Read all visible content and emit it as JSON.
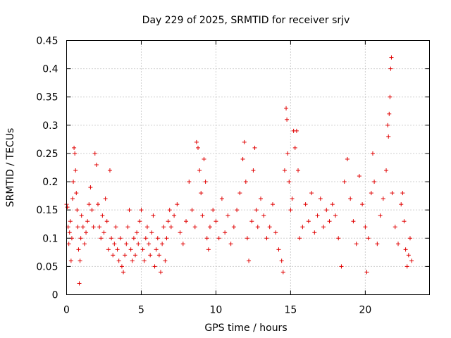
{
  "chart_data": {
    "type": "scatter",
    "title": "Day 229 of 2025, SRMTID for receiver srjv",
    "xlabel": "GPS time / hours",
    "ylabel": "SRMTID / TECUs",
    "xlim": [
      0,
      24.3
    ],
    "ylim": [
      0,
      0.45
    ],
    "xticks": [
      0,
      5,
      10,
      15,
      20
    ],
    "xtick_labels": [
      "0",
      "5",
      "10",
      "15",
      "20"
    ],
    "yticks": [
      0,
      0.05,
      0.1,
      0.15,
      0.2,
      0.25,
      0.3,
      0.35,
      0.4,
      0.45
    ],
    "ytick_labels": [
      "0",
      "0.05",
      "0.1",
      "0.15",
      "0.2",
      "0.25",
      "0.3",
      "0.35",
      "0.4",
      "0.45"
    ],
    "grid": true,
    "marker": "+",
    "color": "#e00000",
    "series": [
      {
        "name": "SRMTID",
        "points": [
          [
            0.0,
            0.16
          ],
          [
            0.05,
            0.155
          ],
          [
            0.1,
            0.12
          ],
          [
            0.15,
            0.09
          ],
          [
            0.2,
            0.11
          ],
          [
            0.25,
            0.13
          ],
          [
            0.3,
            0.06
          ],
          [
            0.35,
            0.1
          ],
          [
            0.4,
            0.17
          ],
          [
            0.45,
            0.2
          ],
          [
            0.5,
            0.26
          ],
          [
            0.55,
            0.25
          ],
          [
            0.6,
            0.22
          ],
          [
            0.65,
            0.18
          ],
          [
            0.7,
            0.15
          ],
          [
            0.75,
            0.12
          ],
          [
            0.8,
            0.08
          ],
          [
            0.85,
            0.02
          ],
          [
            0.9,
            0.06
          ],
          [
            0.95,
            0.1
          ],
          [
            1.0,
            0.14
          ],
          [
            1.1,
            0.12
          ],
          [
            1.2,
            0.09
          ],
          [
            1.3,
            0.11
          ],
          [
            1.4,
            0.13
          ],
          [
            1.5,
            0.16
          ],
          [
            1.6,
            0.19
          ],
          [
            1.7,
            0.15
          ],
          [
            1.8,
            0.12
          ],
          [
            1.9,
            0.25
          ],
          [
            2.0,
            0.23
          ],
          [
            2.1,
            0.16
          ],
          [
            2.2,
            0.12
          ],
          [
            2.3,
            0.1
          ],
          [
            2.4,
            0.14
          ],
          [
            2.5,
            0.11
          ],
          [
            2.6,
            0.17
          ],
          [
            2.7,
            0.13
          ],
          [
            2.8,
            0.08
          ],
          [
            2.9,
            0.22
          ],
          [
            3.0,
            0.1
          ],
          [
            3.1,
            0.07
          ],
          [
            3.2,
            0.09
          ],
          [
            3.3,
            0.12
          ],
          [
            3.4,
            0.08
          ],
          [
            3.5,
            0.06
          ],
          [
            3.6,
            0.1
          ],
          [
            3.7,
            0.05
          ],
          [
            3.8,
            0.04
          ],
          [
            3.9,
            0.07
          ],
          [
            4.0,
            0.09
          ],
          [
            4.1,
            0.12
          ],
          [
            4.2,
            0.15
          ],
          [
            4.3,
            0.08
          ],
          [
            4.4,
            0.06
          ],
          [
            4.5,
            0.1
          ],
          [
            4.6,
            0.07
          ],
          [
            4.7,
            0.11
          ],
          [
            4.8,
            0.09
          ],
          [
            4.9,
            0.13
          ],
          [
            5.0,
            0.15
          ],
          [
            5.1,
            0.08
          ],
          [
            5.2,
            0.06
          ],
          [
            5.3,
            0.1
          ],
          [
            5.4,
            0.12
          ],
          [
            5.5,
            0.09
          ],
          [
            5.6,
            0.07
          ],
          [
            5.7,
            0.11
          ],
          [
            5.8,
            0.14
          ],
          [
            5.9,
            0.05
          ],
          [
            6.0,
            0.08
          ],
          [
            6.1,
            0.1
          ],
          [
            6.2,
            0.07
          ],
          [
            6.3,
            0.04
          ],
          [
            6.4,
            0.09
          ],
          [
            6.5,
            0.12
          ],
          [
            6.6,
            0.06
          ],
          [
            6.7,
            0.1
          ],
          [
            6.8,
            0.13
          ],
          [
            6.9,
            0.15
          ],
          [
            7.0,
            0.12
          ],
          [
            7.2,
            0.14
          ],
          [
            7.4,
            0.16
          ],
          [
            7.6,
            0.11
          ],
          [
            7.8,
            0.09
          ],
          [
            8.0,
            0.13
          ],
          [
            8.2,
            0.2
          ],
          [
            8.4,
            0.15
          ],
          [
            8.6,
            0.12
          ],
          [
            8.7,
            0.27
          ],
          [
            8.8,
            0.26
          ],
          [
            8.9,
            0.22
          ],
          [
            9.0,
            0.18
          ],
          [
            9.1,
            0.14
          ],
          [
            9.2,
            0.24
          ],
          [
            9.3,
            0.2
          ],
          [
            9.4,
            0.1
          ],
          [
            9.5,
            0.08
          ],
          [
            9.6,
            0.12
          ],
          [
            9.8,
            0.15
          ],
          [
            10.0,
            0.13
          ],
          [
            10.2,
            0.1
          ],
          [
            10.4,
            0.17
          ],
          [
            10.6,
            0.11
          ],
          [
            10.8,
            0.14
          ],
          [
            11.0,
            0.09
          ],
          [
            11.2,
            0.12
          ],
          [
            11.4,
            0.15
          ],
          [
            11.6,
            0.18
          ],
          [
            11.8,
            0.24
          ],
          [
            11.9,
            0.27
          ],
          [
            12.0,
            0.2
          ],
          [
            12.1,
            0.1
          ],
          [
            12.2,
            0.06
          ],
          [
            12.4,
            0.13
          ],
          [
            12.5,
            0.22
          ],
          [
            12.6,
            0.26
          ],
          [
            12.7,
            0.15
          ],
          [
            12.8,
            0.12
          ],
          [
            13.0,
            0.17
          ],
          [
            13.2,
            0.14
          ],
          [
            13.4,
            0.1
          ],
          [
            13.6,
            0.12
          ],
          [
            13.8,
            0.16
          ],
          [
            14.0,
            0.11
          ],
          [
            14.2,
            0.08
          ],
          [
            14.4,
            0.06
          ],
          [
            14.5,
            0.04
          ],
          [
            14.6,
            0.22
          ],
          [
            14.7,
            0.33
          ],
          [
            14.75,
            0.31
          ],
          [
            14.8,
            0.25
          ],
          [
            14.9,
            0.2
          ],
          [
            15.0,
            0.15
          ],
          [
            15.1,
            0.17
          ],
          [
            15.2,
            0.29
          ],
          [
            15.3,
            0.26
          ],
          [
            15.4,
            0.29
          ],
          [
            15.5,
            0.22
          ],
          [
            15.6,
            0.1
          ],
          [
            15.8,
            0.12
          ],
          [
            16.0,
            0.16
          ],
          [
            16.2,
            0.13
          ],
          [
            16.4,
            0.18
          ],
          [
            16.6,
            0.11
          ],
          [
            16.8,
            0.14
          ],
          [
            17.0,
            0.17
          ],
          [
            17.2,
            0.12
          ],
          [
            17.4,
            0.15
          ],
          [
            17.6,
            0.13
          ],
          [
            17.8,
            0.16
          ],
          [
            18.0,
            0.14
          ],
          [
            18.2,
            0.1
          ],
          [
            18.4,
            0.05
          ],
          [
            18.6,
            0.2
          ],
          [
            18.8,
            0.24
          ],
          [
            19.0,
            0.17
          ],
          [
            19.2,
            0.13
          ],
          [
            19.4,
            0.09
          ],
          [
            19.6,
            0.21
          ],
          [
            19.8,
            0.16
          ],
          [
            20.0,
            0.12
          ],
          [
            20.1,
            0.04
          ],
          [
            20.2,
            0.1
          ],
          [
            20.4,
            0.18
          ],
          [
            20.5,
            0.25
          ],
          [
            20.6,
            0.2
          ],
          [
            20.8,
            0.09
          ],
          [
            21.0,
            0.14
          ],
          [
            21.2,
            0.17
          ],
          [
            21.4,
            0.22
          ],
          [
            21.5,
            0.3
          ],
          [
            21.55,
            0.28
          ],
          [
            21.6,
            0.32
          ],
          [
            21.65,
            0.35
          ],
          [
            21.7,
            0.4
          ],
          [
            21.75,
            0.42
          ],
          [
            21.8,
            0.18
          ],
          [
            22.0,
            0.12
          ],
          [
            22.2,
            0.09
          ],
          [
            22.4,
            0.16
          ],
          [
            22.5,
            0.18
          ],
          [
            22.6,
            0.13
          ],
          [
            22.7,
            0.08
          ],
          [
            22.8,
            0.05
          ],
          [
            22.9,
            0.07
          ],
          [
            23.0,
            0.1
          ],
          [
            23.1,
            0.06
          ]
        ]
      }
    ]
  }
}
